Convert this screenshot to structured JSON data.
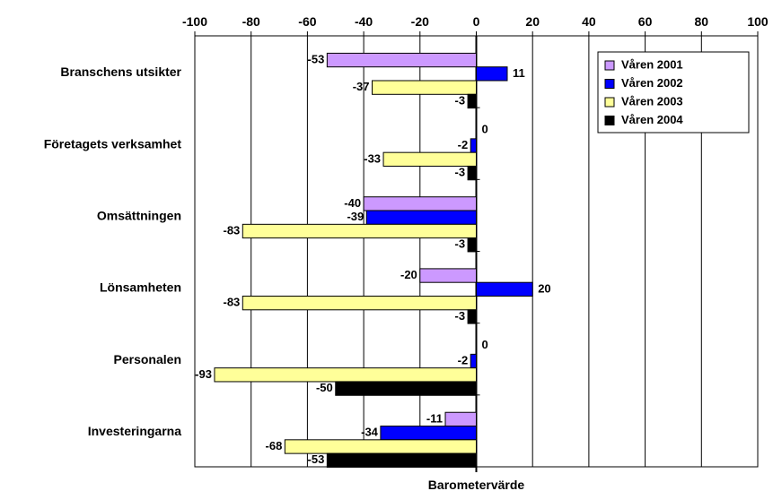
{
  "chart_data": {
    "type": "bar",
    "orientation": "horizontal",
    "categories": [
      "Branschens utsikter",
      "Företagets verksamhet",
      "Omsättningen",
      "Lönsamheten",
      "Personalen",
      "Investeringarna"
    ],
    "series": [
      {
        "name": "Våren 2001",
        "color": "#cc99ff",
        "values": [
          -53,
          null,
          -40,
          -20,
          null,
          -11
        ]
      },
      {
        "name": "Våren 2002",
        "color": "#0000ff",
        "values": [
          11,
          -2,
          -39,
          20,
          -2,
          -34
        ]
      },
      {
        "name": "Våren 2003",
        "color": "#ffff99",
        "values": [
          -37,
          -33,
          -83,
          -83,
          -93,
          -68
        ]
      },
      {
        "name": "Våren 2004",
        "color": "#000000",
        "values": [
          -3,
          -3,
          -3,
          -3,
          -50,
          -53
        ]
      }
    ],
    "point_labels": [
      [
        "-53",
        "11",
        "-37",
        "-3"
      ],
      [
        "0",
        "-2",
        "-33",
        "-3"
      ],
      [
        "-40",
        "-39",
        "-83",
        "-3"
      ],
      [
        "-20",
        "20",
        "-83",
        "-3"
      ],
      [
        "0",
        "-2",
        "-93",
        "-50"
      ],
      [
        "-11",
        "-34",
        "-68",
        "-53"
      ]
    ],
    "xlim": [
      -100,
      100
    ],
    "xticks": [
      -100,
      -80,
      -60,
      -40,
      -20,
      0,
      20,
      40,
      60,
      80,
      100
    ],
    "x_axis_position": "top",
    "xlabel": "Barometervärde",
    "ylabel": "",
    "title": "",
    "grid": "vertical",
    "legend_position": "top-right"
  }
}
